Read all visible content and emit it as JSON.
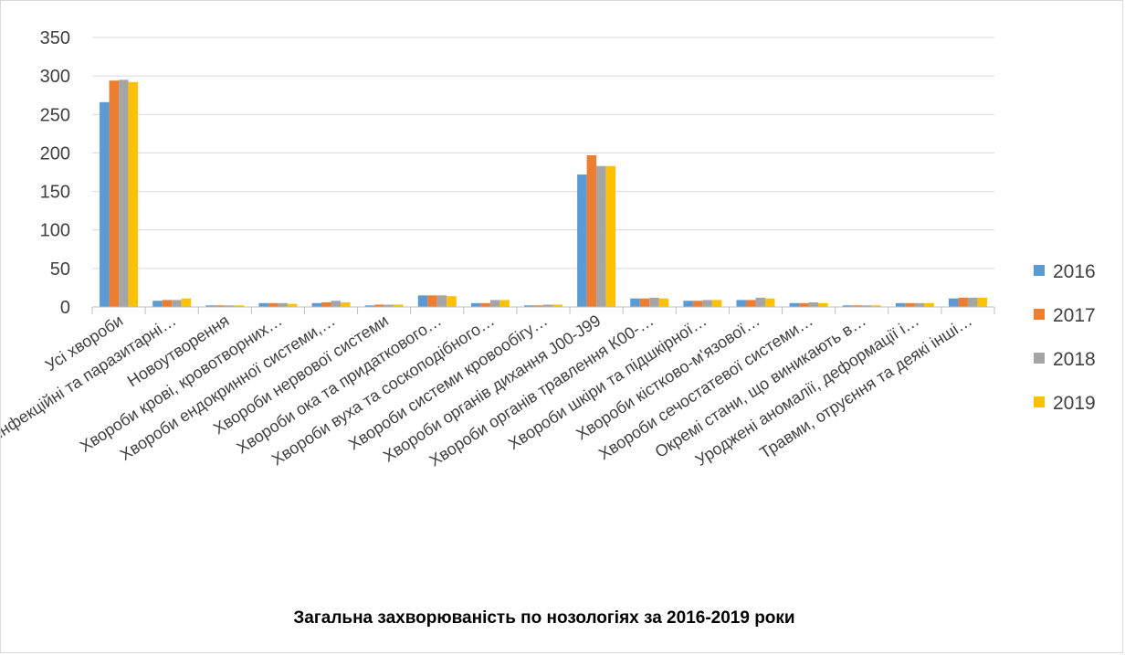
{
  "chart_data": {
    "type": "bar",
    "title": "Загальна захворюваність по нозологіях за 2016-2019 роки",
    "xlabel": "",
    "ylabel": "",
    "ylim": [
      0,
      350
    ],
    "yticks": [
      "0",
      "50",
      "100",
      "150",
      "200",
      "250",
      "300",
      "350"
    ],
    "grid": true,
    "legend_position": "right",
    "categories": [
      "Усі хвороби",
      "Інфекційні та паразитарні…",
      "Новоутворення",
      "Хвороби крові, кровотворних…",
      "Хвороби ендокринної системи,…",
      "Хвороби нервової системи",
      "Хвороби ока та придаткового…",
      "Хвороби вуха та соскоподібного…",
      "Хвороби системи кровообігу…",
      "Хвороби органів дихання    J00-J99",
      "Хвороби органів травлення К00-…",
      "Хвороби шкіри та підшкірної…",
      "Хвороби кістково-м'язової…",
      "Хвороби сечостатевої системи…",
      "Окремі стани, що виникають в…",
      "Уроджені аномалії, деформації і…",
      "Травми, отруєння та деякі інші…"
    ],
    "series": [
      {
        "name": "2016",
        "color": "#5b9bd5",
        "values": [
          266,
          8,
          2,
          5,
          5,
          2,
          15,
          5,
          2,
          172,
          11,
          8,
          9,
          5,
          2,
          5,
          11
        ]
      },
      {
        "name": "2017",
        "color": "#ed7d31",
        "values": [
          294,
          9,
          2,
          5,
          6,
          3,
          15,
          5,
          2,
          197,
          11,
          8,
          9,
          5,
          2,
          5,
          12
        ]
      },
      {
        "name": "2018",
        "color": "#a5a5a5",
        "values": [
          295,
          9,
          2,
          5,
          8,
          3,
          15,
          9,
          3,
          183,
          12,
          9,
          12,
          6,
          2,
          5,
          12
        ]
      },
      {
        "name": "2019",
        "color": "#ffc000",
        "values": [
          292,
          11,
          2,
          4,
          6,
          3,
          14,
          9,
          3,
          183,
          11,
          9,
          11,
          5,
          2,
          5,
          12
        ]
      }
    ]
  }
}
